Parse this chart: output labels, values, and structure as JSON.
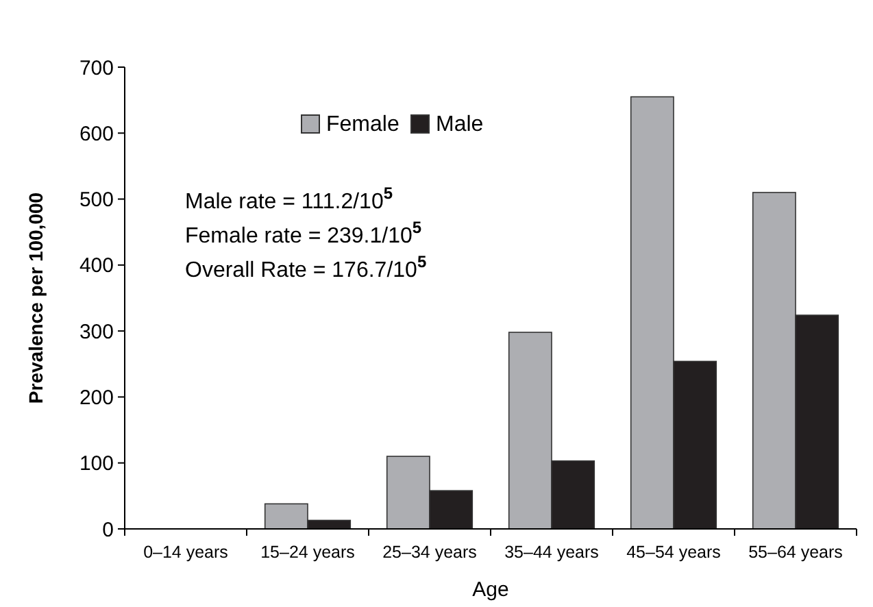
{
  "chart_data": {
    "type": "bar",
    "xlabel": "Age",
    "ylabel": "Prevalence per 100,000",
    "categories": [
      "0–14 years",
      "15–24 years",
      "25–34 years",
      "35–44 years",
      "45–54 years",
      "55–64 years"
    ],
    "series": [
      {
        "name": "Female",
        "color": "#adaeb2",
        "values": [
          0,
          38,
          110,
          298,
          655,
          510
        ]
      },
      {
        "name": "Male",
        "color": "#231f20",
        "values": [
          0,
          13,
          58,
          103,
          254,
          324
        ]
      }
    ],
    "ylim": [
      0,
      700
    ],
    "yticks": [
      0,
      100,
      200,
      300,
      400,
      500,
      600,
      700
    ],
    "grid": false,
    "legend": "top",
    "annotations": [
      "Male rate = 111.2/10$^{5}$",
      "Female rate = 239.1/10$^{5}$",
      "Overall Rate = 176.7/10$^{5}$"
    ]
  }
}
